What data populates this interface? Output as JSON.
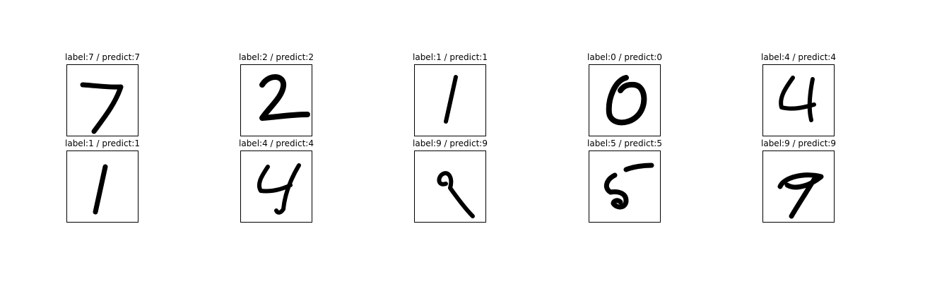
{
  "panels": [
    {
      "title": "label:7 / predict:7",
      "label": 7,
      "predict": 7,
      "glyph": "digit-7"
    },
    {
      "title": "label:2 / predict:2",
      "label": 2,
      "predict": 2,
      "glyph": "digit-2"
    },
    {
      "title": "label:1 / predict:1",
      "label": 1,
      "predict": 1,
      "glyph": "digit-1a"
    },
    {
      "title": "label:0 / predict:0",
      "label": 0,
      "predict": 0,
      "glyph": "digit-0"
    },
    {
      "title": "label:4 / predict:4",
      "label": 4,
      "predict": 4,
      "glyph": "digit-4a"
    },
    {
      "title": "label:1 / predict:1",
      "label": 1,
      "predict": 1,
      "glyph": "digit-1b"
    },
    {
      "title": "label:4 / predict:4",
      "label": 4,
      "predict": 4,
      "glyph": "digit-4b"
    },
    {
      "title": "label:9 / predict:9",
      "label": 9,
      "predict": 9,
      "glyph": "digit-9a"
    },
    {
      "title": "label:5 / predict:5",
      "label": 5,
      "predict": 5,
      "glyph": "digit-5"
    },
    {
      "title": "label:9 / predict:9",
      "label": 9,
      "predict": 9,
      "glyph": "digit-9b"
    }
  ],
  "colors": {
    "ink": "#000000",
    "background": "#ffffff",
    "frame": "#000000"
  }
}
